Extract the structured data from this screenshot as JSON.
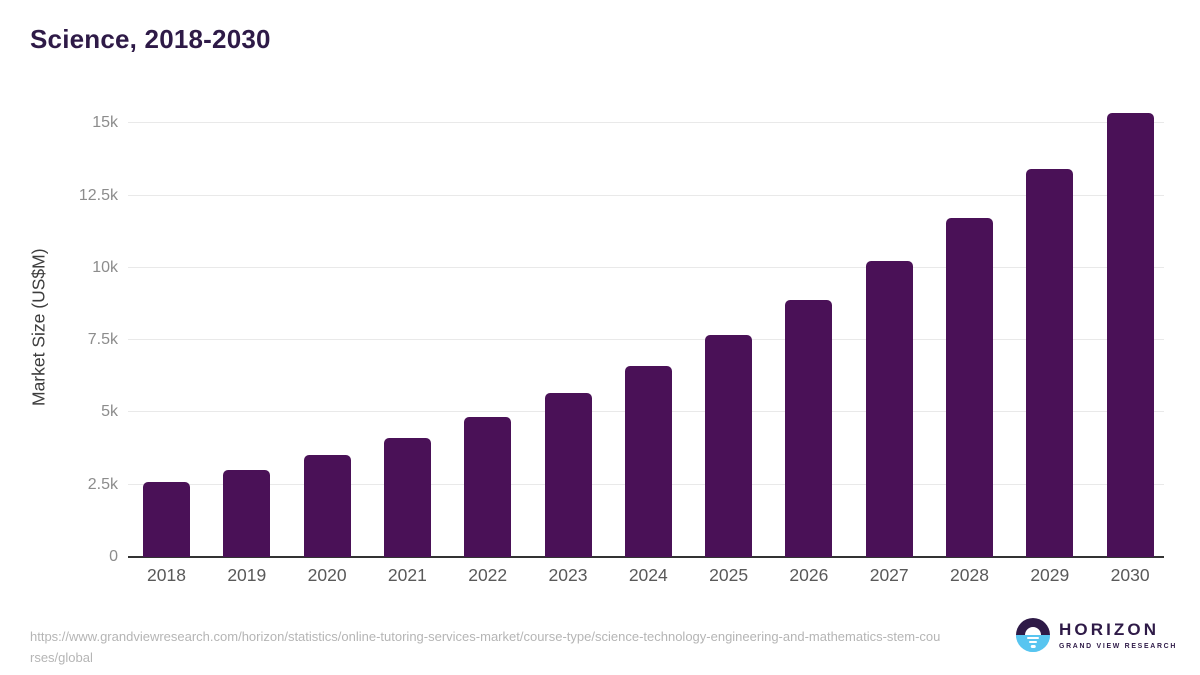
{
  "title": "Science, 2018-2030",
  "colors": {
    "bar": "#4a1157",
    "title": "#2e1a47",
    "grid": "#e9e9e9",
    "axis": "#333333",
    "ytick": "#8c8c8c",
    "xtick": "#595959",
    "footer": "#b5b5b5",
    "logo_purple": "#2e1a47",
    "logo_blue": "#58c5f0"
  },
  "chart_data": {
    "type": "bar",
    "title": "Science, 2018-2030",
    "categories": [
      "2018",
      "2019",
      "2020",
      "2021",
      "2022",
      "2023",
      "2024",
      "2025",
      "2026",
      "2027",
      "2028",
      "2029",
      "2030"
    ],
    "values": [
      2600,
      3000,
      3520,
      4130,
      4840,
      5660,
      6600,
      7680,
      8900,
      10220,
      11730,
      13430,
      15350
    ],
    "xlabel": "",
    "ylabel": "Market Size (US$M)",
    "ylim": [
      0,
      15900
    ],
    "yticks": [
      0,
      2500,
      5000,
      7500,
      10000,
      12500,
      15000
    ],
    "ytick_labels": [
      "0",
      "2.5k",
      "5k",
      "7.5k",
      "10k",
      "12.5k",
      "15k"
    ],
    "grid": "horizontal-only",
    "legend": "none",
    "bar_color": "#4a1157"
  },
  "footer": {
    "source_url": "https://www.grandviewresearch.com/horizon/statistics/online-tutoring-services-market/course-type/science-technology-engineering-and-mathematics-stem-courses/global"
  },
  "logo": {
    "icon": "horizon-sunrise-icon",
    "name": "HORIZON",
    "subtitle": "GRAND VIEW RESEARCH"
  }
}
